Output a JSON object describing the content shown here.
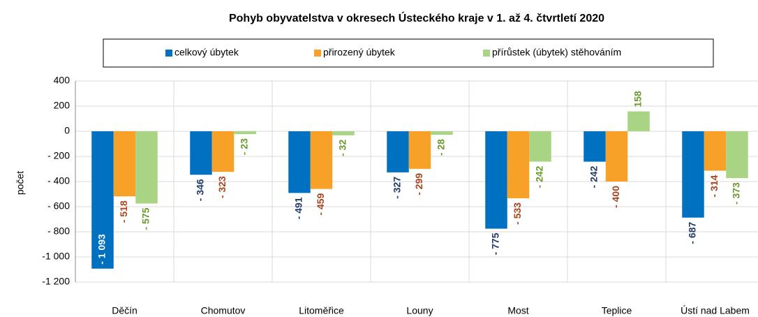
{
  "chart_data": {
    "type": "bar",
    "title": "Pohyb obyvatelstva v okresech Ústeckého kraje v 1. až 4. čtvrtletí 2020",
    "ylabel": "počet",
    "categories": [
      "Děčín",
      "Chomutov",
      "Litoměřice",
      "Louny",
      "Most",
      "Teplice",
      "Ústí nad Labem"
    ],
    "series": [
      {
        "name": "celkový úbytek",
        "color": "#0070c0",
        "label_color": "#1f3a68",
        "values": [
          -1093,
          -346,
          -491,
          -327,
          -775,
          -242,
          -687
        ],
        "value_labels": [
          "- 1 093",
          "- 346",
          "- 491",
          "- 327",
          "- 775",
          "- 242",
          "- 687"
        ]
      },
      {
        "name": "přirozený úbytek",
        "color": "#f7a128",
        "label_color": "#a9441c",
        "values": [
          -518,
          -323,
          -459,
          -299,
          -533,
          -400,
          -314
        ],
        "value_labels": [
          "- 518",
          "- 323",
          "- 459",
          "- 299",
          "- 533",
          "- 400",
          "- 314"
        ]
      },
      {
        "name": "přírůstek (úbytek) stěhováním",
        "color": "#a9d483",
        "label_color": "#6a9a2c",
        "values": [
          -575,
          -23,
          -32,
          -28,
          -242,
          158,
          -373
        ],
        "value_labels": [
          "- 575",
          "- 23",
          "- 32",
          "- 28",
          "- 242",
          "158",
          "- 373"
        ]
      }
    ],
    "ylim": [
      -1200,
      400
    ],
    "yticks": [
      {
        "value": -1200,
        "label": "-1 200"
      },
      {
        "value": -1000,
        "label": "-1 000"
      },
      {
        "value": -800,
        "label": "- 800"
      },
      {
        "value": -600,
        "label": "- 600"
      },
      {
        "value": -400,
        "label": "- 400"
      },
      {
        "value": -200,
        "label": "- 200"
      },
      0,
      200,
      400
    ],
    "grid": true,
    "legend": "top"
  }
}
